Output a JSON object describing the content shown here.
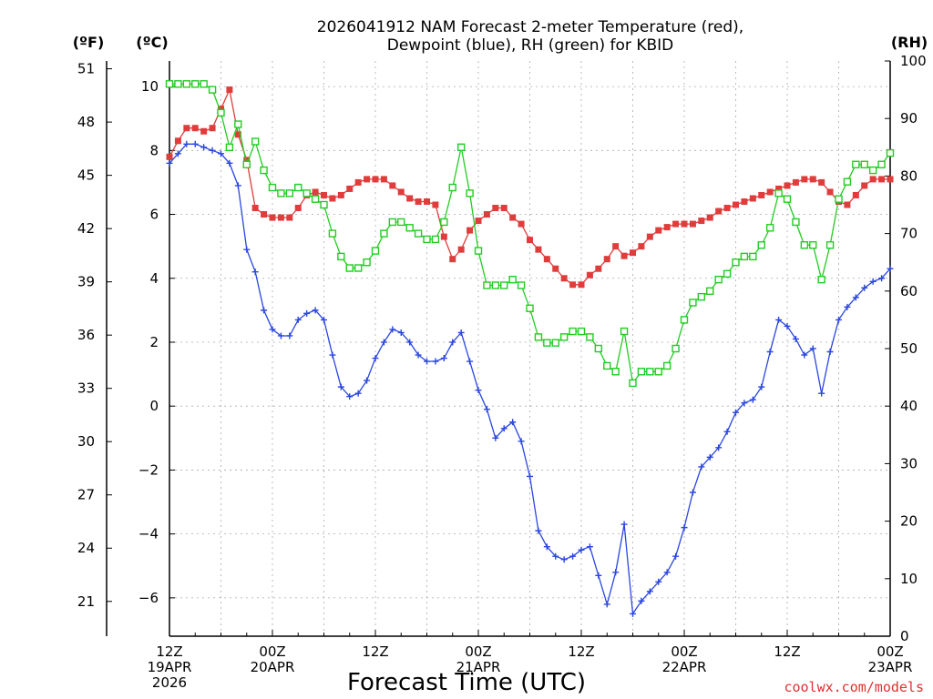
{
  "chart_data": {
    "type": "line",
    "title": "2026041912 NAM Forecast 2-meter Temperature (red),",
    "subtitle": "Dewpoint (blue), RH (green) for KBID",
    "xlabel": "Forecast Time (UTC)",
    "credit": "coolwx.com/models",
    "units": {
      "fahrenheit": "(ºF)",
      "celsius": "(ºC)",
      "rh": "(RH)"
    },
    "x_ticks": [
      {
        "hour": 0,
        "l1": "12Z",
        "l2": "19APR",
        "l3": "2026"
      },
      {
        "hour": 12,
        "l1": "00Z",
        "l2": "20APR",
        "l3": ""
      },
      {
        "hour": 24,
        "l1": "12Z",
        "l2": "",
        "l3": ""
      },
      {
        "hour": 36,
        "l1": "00Z",
        "l2": "21APR",
        "l3": ""
      },
      {
        "hour": 48,
        "l1": "12Z",
        "l2": "",
        "l3": ""
      },
      {
        "hour": 60,
        "l1": "00Z",
        "l2": "22APR",
        "l3": ""
      },
      {
        "hour": 72,
        "l1": "12Z",
        "l2": "",
        "l3": ""
      },
      {
        "hour": 84,
        "l1": "00Z",
        "l2": "23APR",
        "l3": ""
      }
    ],
    "x_range": [
      0,
      84
    ],
    "y_celsius_range": [
      -7.2,
      10.8
    ],
    "y_celsius_ticks": [
      -6,
      -4,
      -2,
      0,
      2,
      4,
      6,
      8,
      10
    ],
    "y_celsius_tick_labels": [
      "−6",
      "−4",
      "−2",
      "0",
      "2",
      "4",
      "6",
      "8",
      "10"
    ],
    "y_fahrenheit_ticks": [
      21,
      24,
      27,
      30,
      33,
      36,
      39,
      42,
      45,
      48,
      51
    ],
    "y_rh_range": [
      0,
      100
    ],
    "y_rh_ticks": [
      0,
      10,
      20,
      30,
      40,
      50,
      60,
      70,
      80,
      90,
      100
    ],
    "grid": true,
    "series": [
      {
        "name": "Temperature",
        "axis": "celsius",
        "color": "#e03c3c",
        "marker": "filled-square",
        "values": [
          7.8,
          8.3,
          8.7,
          8.7,
          8.6,
          8.7,
          9.3,
          9.9,
          8.5,
          7.7,
          6.2,
          6.0,
          5.9,
          5.9,
          5.9,
          6.2,
          6.6,
          6.7,
          6.6,
          6.5,
          6.6,
          6.8,
          7.0,
          7.1,
          7.1,
          7.1,
          6.9,
          6.7,
          6.5,
          6.4,
          6.4,
          6.3,
          5.3,
          4.6,
          4.9,
          5.5,
          5.8,
          6.0,
          6.2,
          6.2,
          5.9,
          5.7,
          5.2,
          4.9,
          4.6,
          4.3,
          4.0,
          3.8,
          3.8,
          4.1,
          4.3,
          4.6,
          5.0,
          4.7,
          4.8,
          5.0,
          5.3,
          5.5,
          5.6,
          5.7,
          5.7,
          5.7,
          5.8,
          5.9,
          6.1,
          6.2,
          6.3,
          6.4,
          6.5,
          6.6,
          6.7,
          6.8,
          6.9,
          7.0,
          7.1,
          7.1,
          7.0,
          6.7,
          6.4,
          6.3,
          6.6,
          6.9,
          7.1,
          7.1,
          7.1
        ]
      },
      {
        "name": "Dewpoint",
        "axis": "celsius",
        "color": "#2a46e0",
        "marker": "plus",
        "values": [
          7.6,
          7.9,
          8.2,
          8.2,
          8.1,
          8.0,
          7.9,
          7.6,
          6.9,
          4.9,
          4.2,
          3.0,
          2.4,
          2.2,
          2.2,
          2.7,
          2.9,
          3.0,
          2.7,
          1.6,
          0.6,
          0.3,
          0.4,
          0.8,
          1.5,
          2.0,
          2.4,
          2.3,
          2.0,
          1.6,
          1.4,
          1.4,
          1.5,
          2.0,
          2.3,
          1.4,
          0.5,
          -0.1,
          -1.0,
          -0.7,
          -0.5,
          -1.1,
          -2.2,
          -3.9,
          -4.4,
          -4.7,
          -4.8,
          -4.7,
          -4.5,
          -4.4,
          -5.3,
          -6.2,
          -5.2,
          -3.7,
          -6.5,
          -6.1,
          -5.8,
          -5.5,
          -5.2,
          -4.7,
          -3.8,
          -2.7,
          -1.9,
          -1.6,
          -1.3,
          -0.8,
          -0.2,
          0.1,
          0.2,
          0.6,
          1.7,
          2.7,
          2.5,
          2.1,
          1.6,
          1.8,
          0.4,
          1.7,
          2.7,
          3.1,
          3.4,
          3.7,
          3.9,
          4.0,
          4.3
        ]
      },
      {
        "name": "RH",
        "axis": "rh",
        "color": "#22cc22",
        "marker": "open-square",
        "values": [
          96,
          96,
          96,
          96,
          96,
          95,
          91,
          85,
          89,
          82,
          86,
          81,
          78,
          77,
          77,
          78,
          77,
          76,
          75,
          70,
          66,
          64,
          64,
          65,
          67,
          70,
          72,
          72,
          71,
          70,
          69,
          69,
          72,
          78,
          85,
          77,
          67,
          61,
          61,
          61,
          62,
          61,
          57,
          52,
          51,
          51,
          52,
          53,
          53,
          52,
          50,
          47,
          46,
          53,
          44,
          46,
          46,
          46,
          47,
          50,
          55,
          58,
          59,
          60,
          62,
          63,
          65,
          66,
          66,
          68,
          71,
          77,
          76,
          72,
          68,
          68,
          62,
          68,
          76,
          79,
          82,
          82,
          81,
          82,
          84
        ]
      }
    ]
  }
}
